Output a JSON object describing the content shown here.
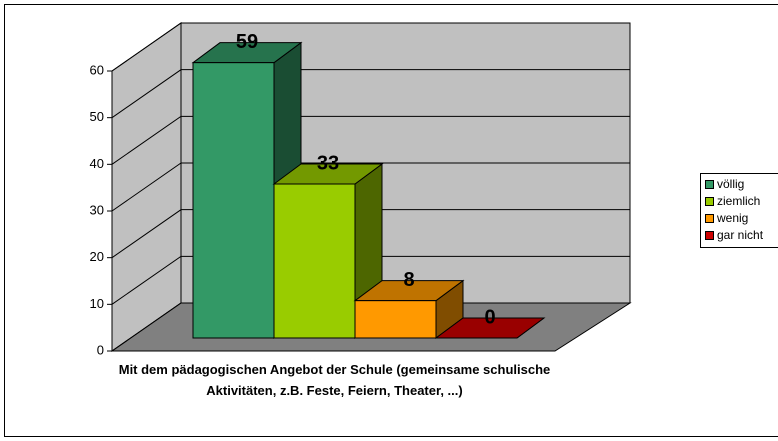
{
  "chart_data": {
    "type": "bar",
    "categories": [
      "Mit dem pädagogischen Angebot der Schule (gemeinsame schulische Aktivitäten, z.B. Feste, Feiern, Theater, ...)"
    ],
    "series": [
      {
        "name": "völlig",
        "color": "#339966",
        "values": [
          59
        ]
      },
      {
        "name": "ziemlich",
        "color": "#99cc00",
        "values": [
          33
        ]
      },
      {
        "name": "wenig",
        "color": "#ff9900",
        "values": [
          8
        ]
      },
      {
        "name": "gar nicht",
        "color": "#cc0000",
        "values": [
          0
        ]
      }
    ],
    "ylim": [
      0,
      60
    ],
    "yticks": [
      0,
      10,
      20,
      30,
      40,
      50,
      60
    ],
    "grid": true,
    "legend": "right"
  }
}
